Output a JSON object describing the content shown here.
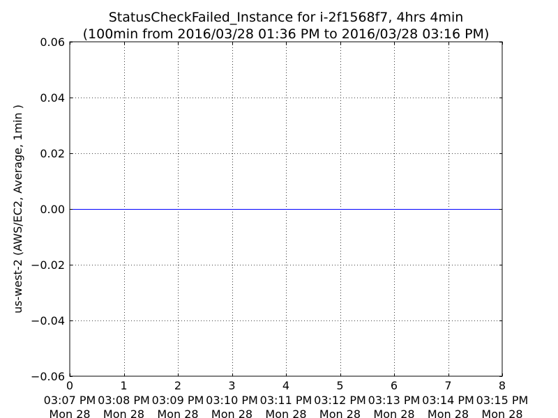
{
  "chart_data": {
    "type": "line",
    "title": "StatusCheckFailed_Instance for i-2f1568f7, 4hrs 4min",
    "subtitle": "(100min from 2016/03/28 01:36 PM to 2016/03/28 03:16 PM)",
    "xlabel": "",
    "ylabel": "us-west-2 (AWS/EC2, Average, 1min )",
    "xlim": [
      0,
      8
    ],
    "ylim": [
      -0.06,
      0.06
    ],
    "x_ticks": [
      0,
      1,
      2,
      3,
      4,
      5,
      6,
      7,
      8
    ],
    "y_ticks": [
      -0.06,
      -0.04,
      -0.02,
      0.0,
      0.02,
      0.04,
      0.06
    ],
    "y_tick_labels": [
      "−0.06",
      "−0.04",
      "−0.02",
      "0.00",
      "0.02",
      "0.04",
      "0.06"
    ],
    "time_labels": [
      {
        "time": "03:07 PM",
        "day": "Mon 28"
      },
      {
        "time": "03:08 PM",
        "day": "Mon 28"
      },
      {
        "time": "03:09 PM",
        "day": "Mon 28"
      },
      {
        "time": "03:10 PM",
        "day": "Mon 28"
      },
      {
        "time": "03:11 PM",
        "day": "Mon 28"
      },
      {
        "time": "03:12 PM",
        "day": "Mon 28"
      },
      {
        "time": "03:13 PM",
        "day": "Mon 28"
      },
      {
        "time": "03:14 PM",
        "day": "Mon 28"
      },
      {
        "time": "03:15 PM",
        "day": "Mon 28"
      }
    ],
    "grid": true,
    "series": [
      {
        "color": "#0000ff",
        "x": [
          0,
          1,
          2,
          3,
          4,
          5,
          6,
          7,
          8
        ],
        "y": [
          0,
          0,
          0,
          0,
          0,
          0,
          0,
          0,
          0
        ]
      }
    ]
  }
}
